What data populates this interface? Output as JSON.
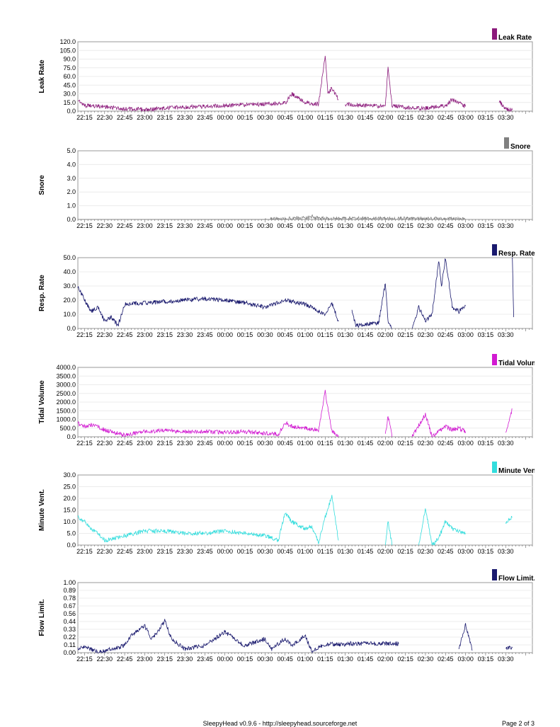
{
  "footer": {
    "center": "SleepyHead v0.9.6 - http://sleepyhead.sourceforge.net",
    "page": "Page 2 of 3"
  },
  "time_ticks": [
    "22:15",
    "22:30",
    "22:45",
    "23:00",
    "23:15",
    "23:30",
    "23:45",
    "00:00",
    "00:15",
    "00:30",
    "00:45",
    "01:00",
    "01:15",
    "01:30",
    "01:45",
    "02:00",
    "02:15",
    "02:30",
    "02:45",
    "03:00",
    "03:15",
    "03:30"
  ],
  "chart_data": [
    {
      "type": "line",
      "ylabel": "Leak Rate",
      "legend": "Leak Rate",
      "color": "#8b1a7b",
      "ylim": [
        0,
        120
      ],
      "y_ticks": [
        "0.0",
        "15.0",
        "30.0",
        "45.0",
        "60.0",
        "75.0",
        "90.0",
        "105.0",
        "120.0"
      ],
      "series": [
        {
          "x": [
            "22:10",
            "22:15",
            "22:30",
            "22:45",
            "23:00",
            "23:15",
            "23:30",
            "23:45",
            "00:00",
            "00:15",
            "00:30",
            "00:45",
            "00:50",
            "01:00",
            "01:10",
            "01:15",
            "01:17",
            "01:20",
            "01:25"
          ],
          "y": [
            20,
            10,
            8,
            4,
            3,
            5,
            7,
            8,
            10,
            11,
            12,
            14,
            30,
            15,
            12,
            95,
            30,
            40,
            20
          ]
        },
        {
          "x": [
            "01:30",
            "01:45",
            "02:00",
            "02:02",
            "02:05",
            "02:15",
            "02:30",
            "02:45",
            "02:50",
            "03:00"
          ],
          "y": [
            12,
            10,
            8,
            75,
            10,
            6,
            5,
            10,
            20,
            8
          ]
        },
        {
          "x": [
            "03:25",
            "03:30",
            "03:35"
          ],
          "y": [
            18,
            3,
            2
          ]
        }
      ]
    },
    {
      "type": "line",
      "ylabel": "Snore",
      "legend": "Snore",
      "color": "#808080",
      "ylim": [
        0,
        5
      ],
      "y_ticks": [
        "0.0",
        "1.0",
        "2.0",
        "3.0",
        "4.0",
        "5.0"
      ],
      "series": [
        {
          "x": [
            "22:10",
            "22:45",
            "23:30",
            "00:30",
            "00:45",
            "01:00",
            "01:05",
            "01:10",
            "02:30",
            "03:00"
          ],
          "y": [
            0,
            0,
            0,
            0,
            0.05,
            0.1,
            0.2,
            0.05,
            0.05,
            0
          ]
        }
      ]
    },
    {
      "type": "line",
      "ylabel": "Resp. Rate",
      "legend": "Resp. Rate",
      "color": "#1a1a6e",
      "ylim": [
        0,
        50
      ],
      "y_ticks": [
        "0.0",
        "10.0",
        "20.0",
        "30.0",
        "40.0",
        "50.0"
      ],
      "series": [
        {
          "x": [
            "22:10",
            "22:15",
            "22:20",
            "22:25",
            "22:30",
            "22:35",
            "22:40",
            "22:45",
            "23:00",
            "23:15",
            "23:30",
            "23:45",
            "00:00",
            "00:15",
            "00:30",
            "00:45",
            "01:00",
            "01:15",
            "01:20",
            "01:25"
          ],
          "y": [
            30,
            20,
            12,
            15,
            5,
            8,
            2,
            17,
            18,
            19,
            20,
            21,
            20,
            18,
            15,
            20,
            17,
            10,
            18,
            5
          ]
        },
        {
          "x": [
            "01:35",
            "01:38",
            "01:55",
            "02:00",
            "02:02",
            "02:05"
          ],
          "y": [
            12,
            2,
            4,
            32,
            5,
            0
          ]
        },
        {
          "x": [
            "02:20",
            "02:25",
            "02:30",
            "02:35",
            "02:40",
            "02:42",
            "02:45",
            "02:50",
            "02:55",
            "03:00"
          ],
          "y": [
            0,
            15,
            5,
            10,
            48,
            30,
            50,
            15,
            12,
            16
          ]
        },
        {
          "x": [
            "03:35",
            "03:36"
          ],
          "y": [
            50,
            8
          ]
        }
      ]
    },
    {
      "type": "line",
      "ylabel": "Tidal Volume",
      "legend": "Tidal Volume",
      "color": "#d11ad1",
      "ylim": [
        0,
        4000
      ],
      "y_ticks": [
        "0.0",
        "500.0",
        "1000.0",
        "1500.0",
        "2000.0",
        "2500.0",
        "3000.0",
        "3500.0",
        "4000.0"
      ],
      "series": [
        {
          "x": [
            "22:10",
            "22:15",
            "22:20",
            "22:30",
            "22:40",
            "22:45",
            "23:00",
            "23:15",
            "23:30",
            "23:45",
            "00:00",
            "00:15",
            "00:30",
            "00:40",
            "00:45",
            "00:50",
            "01:00",
            "01:10",
            "01:15",
            "01:20",
            "01:25"
          ],
          "y": [
            800,
            600,
            700,
            400,
            200,
            100,
            300,
            350,
            300,
            300,
            250,
            300,
            200,
            150,
            800,
            600,
            500,
            400,
            2600,
            300,
            100
          ]
        },
        {
          "x": [
            "02:00",
            "02:02",
            "02:05"
          ],
          "y": [
            100,
            1200,
            0
          ]
        },
        {
          "x": [
            "02:20",
            "02:30",
            "02:35",
            "02:40",
            "02:45",
            "02:50",
            "02:55",
            "03:00"
          ],
          "y": [
            0,
            1300,
            0,
            300,
            600,
            400,
            500,
            300
          ]
        },
        {
          "x": [
            "03:30",
            "03:35"
          ],
          "y": [
            200,
            1600
          ]
        }
      ]
    },
    {
      "type": "line",
      "ylabel": "Minute Vent.",
      "legend": "Minute Vent.",
      "color": "#33dddd",
      "ylim": [
        0,
        30
      ],
      "y_ticks": [
        "0.0",
        "5.0",
        "10.0",
        "15.0",
        "20.0",
        "25.0",
        "30.0"
      ],
      "series": [
        {
          "x": [
            "22:10",
            "22:15",
            "22:20",
            "22:25",
            "22:30",
            "22:45",
            "23:00",
            "23:15",
            "23:30",
            "23:45",
            "00:00",
            "00:15",
            "00:30",
            "00:40",
            "00:45",
            "00:50",
            "01:00",
            "01:05",
            "01:10",
            "01:15",
            "01:20",
            "01:25"
          ],
          "y": [
            12,
            10,
            7,
            5,
            2,
            4,
            6,
            6,
            5,
            5,
            6,
            5,
            4,
            2,
            14,
            10,
            7,
            8,
            1,
            12,
            21,
            2
          ]
        },
        {
          "x": [
            "02:00",
            "02:02",
            "02:05"
          ],
          "y": [
            0,
            10,
            0
          ]
        },
        {
          "x": [
            "02:25",
            "02:30",
            "02:35",
            "02:40",
            "02:45",
            "02:50",
            "02:55",
            "03:00"
          ],
          "y": [
            0,
            16,
            0,
            3,
            10,
            7,
            6,
            5
          ]
        },
        {
          "x": [
            "03:30",
            "03:35"
          ],
          "y": [
            10,
            12
          ]
        }
      ]
    },
    {
      "type": "line",
      "ylabel": "Flow Limit.",
      "legend": "Flow Limit.",
      "color": "#1a1a6e",
      "ylim": [
        0,
        1
      ],
      "y_ticks": [
        "0.00",
        "0.11",
        "0.22",
        "0.33",
        "0.44",
        "0.56",
        "0.67",
        "0.78",
        "0.89",
        "1.00"
      ],
      "series": [
        {
          "x": [
            "22:10",
            "22:15",
            "22:20",
            "22:25",
            "22:45",
            "22:50",
            "23:00",
            "23:05",
            "23:10",
            "23:15",
            "23:20",
            "23:30",
            "23:45",
            "00:00",
            "00:10",
            "00:15",
            "00:30",
            "00:35",
            "00:45",
            "00:50",
            "01:00",
            "01:05",
            "01:15",
            "01:30"
          ],
          "y": [
            0.06,
            0.08,
            0.05,
            0,
            0.1,
            0.25,
            0.38,
            0.2,
            0.3,
            0.46,
            0.2,
            0.05,
            0.1,
            0.3,
            0.15,
            0.1,
            0.2,
            0.05,
            0.2,
            0.1,
            0.25,
            0.02,
            0.12,
            0.12
          ]
        },
        {
          "x": [
            "01:30",
            "02:10"
          ],
          "y": [
            0.13,
            0.13
          ]
        },
        {
          "x": [
            "02:55",
            "03:00",
            "03:05"
          ],
          "y": [
            0.05,
            0.4,
            0.03
          ]
        },
        {
          "x": [
            "03:30",
            "03:35"
          ],
          "y": [
            0.07,
            0.07
          ]
        }
      ]
    }
  ]
}
